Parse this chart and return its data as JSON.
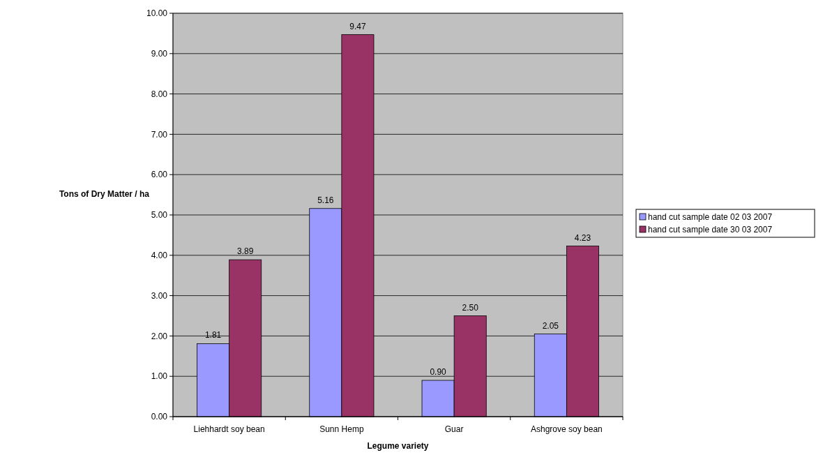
{
  "chart_data": {
    "type": "bar",
    "xlabel": "Legume variety",
    "ylabel": "Tons of Dry Matter / ha",
    "categories": [
      "Liehhardt soy bean",
      "Sunn Hemp",
      "Guar",
      "Ashgrove soy bean"
    ],
    "series": [
      {
        "name": "hand cut sample date 02 03 2007",
        "color": "#9999ff",
        "values": [
          1.81,
          5.16,
          0.9,
          2.05
        ],
        "value_labels": [
          "1.81",
          "5.16",
          "0.90",
          "2.05"
        ]
      },
      {
        "name": "hand cut sample date 30 03 2007",
        "color": "#993366",
        "values": [
          3.89,
          9.47,
          2.5,
          4.23
        ],
        "value_labels": [
          "3.89",
          "9.47",
          "2.50",
          "4.23"
        ]
      }
    ],
    "ylim": [
      0,
      10
    ],
    "yticks": [
      {
        "value": 0,
        "label": "0.00"
      },
      {
        "value": 1,
        "label": "1.00"
      },
      {
        "value": 2,
        "label": "2.00"
      },
      {
        "value": 3,
        "label": "3.00"
      },
      {
        "value": 4,
        "label": "4.00"
      },
      {
        "value": 5,
        "label": "5.00"
      },
      {
        "value": 6,
        "label": "6.00"
      },
      {
        "value": 7,
        "label": "7.00"
      },
      {
        "value": 8,
        "label": "8.00"
      },
      {
        "value": 9,
        "label": "9.00"
      },
      {
        "value": 10,
        "label": "10.00"
      }
    ],
    "grid": "y",
    "legend": "right"
  }
}
